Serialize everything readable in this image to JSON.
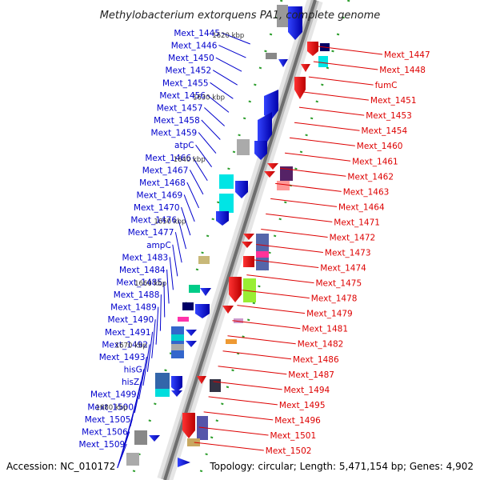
{
  "title": "Methylobacterium extorquens PA1, complete genome",
  "footer": {
    "accession": "Accession: NC_010172",
    "stats": "Topology: circular; Length: 5,471,154 bp; Genes: 4,902"
  },
  "colors": {
    "left_strand": "#0000cc",
    "right_strand": "#dd0000",
    "backbone": "#777777"
  },
  "ruler": [
    "1620 kbp",
    "1630 kbp",
    "1640 kbp",
    "1650 kbp",
    "1660 kbp",
    "1670 kbp",
    "1680 kbp"
  ],
  "left_genes": [
    "Mext_1445",
    "Mext_1446",
    "Mext_1450",
    "Mext_1452",
    "Mext_1455",
    "Mext_1456",
    "Mext_1457",
    "Mext_1458",
    "Mext_1459",
    "atpC",
    "Mext_1466",
    "Mext_1467",
    "Mext_1468",
    "Mext_1469",
    "Mext_1470",
    "Mext_1476",
    "Mext_1477",
    "ampC",
    "Mext_1483",
    "Mext_1484",
    "Mext_1485",
    "Mext_1488",
    "Mext_1489",
    "Mext_1490",
    "Mext_1491",
    "Mext_1492",
    "Mext_1493",
    "hisG",
    "hisZ",
    "Mext_1499",
    "Mext_1500",
    "Mext_1505",
    "Mext_1506",
    "Mext_1509"
  ],
  "right_genes": [
    "Mext_1447",
    "Mext_1448",
    "fumC",
    "Mext_1451",
    "Mext_1453",
    "Mext_1454",
    "Mext_1460",
    "Mext_1461",
    "Mext_1462",
    "Mext_1463",
    "Mext_1464",
    "Mext_1471",
    "Mext_1472",
    "Mext_1473",
    "Mext_1474",
    "Mext_1475",
    "Mext_1478",
    "Mext_1479",
    "Mext_1481",
    "Mext_1482",
    "Mext_1486",
    "Mext_1487",
    "Mext_1494",
    "Mext_1495",
    "Mext_1496",
    "Mext_1501",
    "Mext_1502"
  ]
}
